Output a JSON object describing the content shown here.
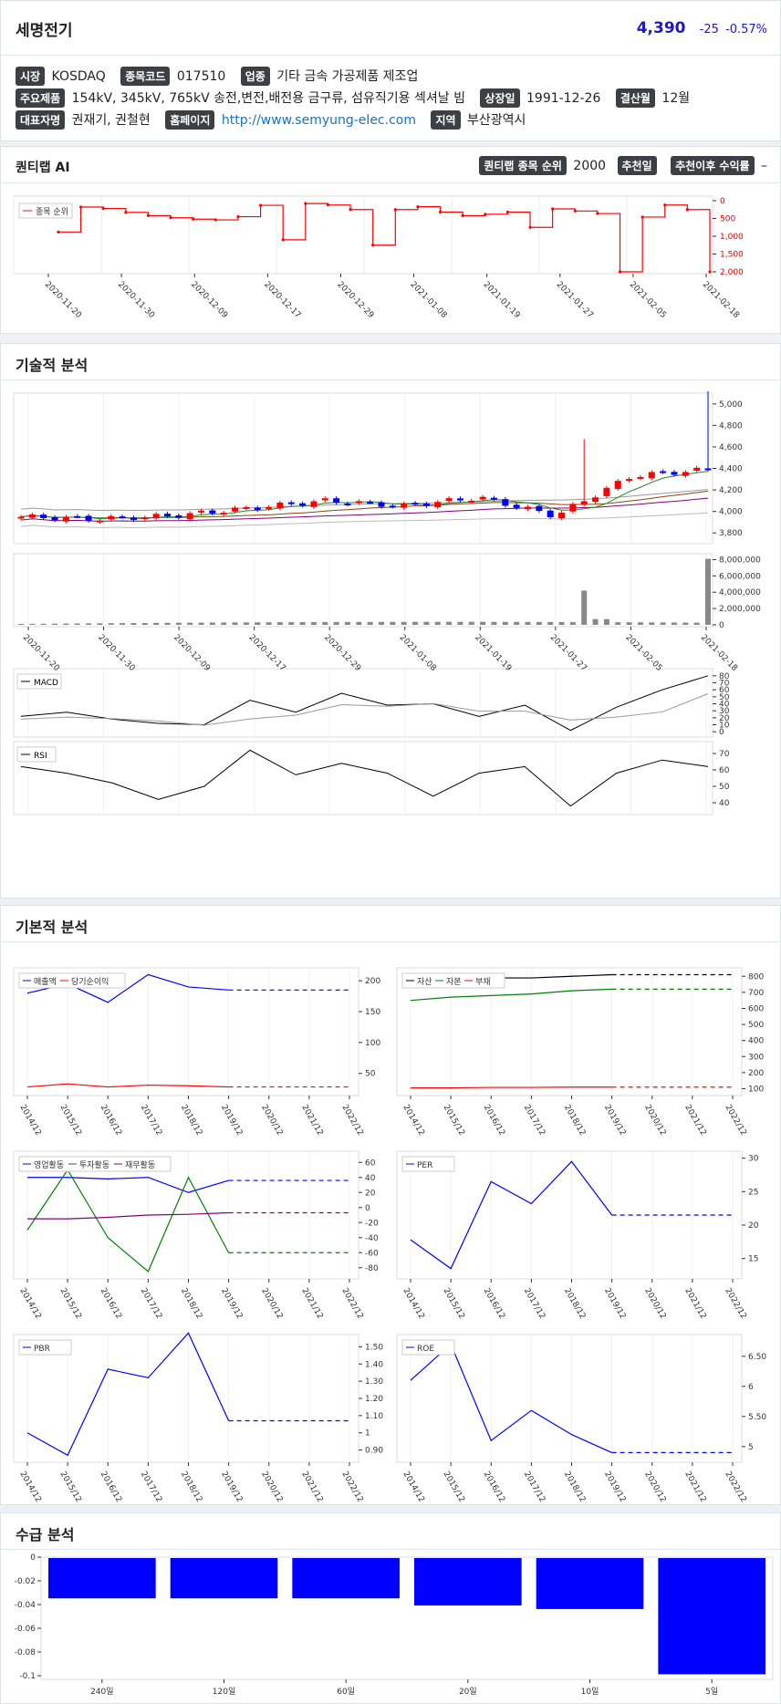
{
  "stock": {
    "name": "세명전기",
    "price": "4,390",
    "change": "-25",
    "change_pct": "-0.57%"
  },
  "info": {
    "market_label": "시장",
    "market": "KOSDAQ",
    "code_label": "종목코드",
    "code": "017510",
    "industry_label": "업종",
    "industry": "기타 금속 가공제품 제조업",
    "products_label": "주요제품",
    "products": "154kV, 345kV, 765kV 송전,변전,배전용 금구류, 섬유직기용 섹셔날 빔",
    "listed_label": "상장일",
    "listed": "1991-12-26",
    "fiscal_label": "결산월",
    "fiscal": "12월",
    "ceo_label": "대표자명",
    "ceo": "권재기, 권철현",
    "homepage_label": "홈페이지",
    "homepage": "http://www.semyung-elec.com",
    "region_label": "지역",
    "region": "부산광역시"
  },
  "ai": {
    "title": "퀀티랩 AI",
    "rank_label": "퀀티랩 종목 순위",
    "rank": "2000",
    "rec_label": "추천일",
    "return_label": "추천이후 수익률",
    "return": "–",
    "legend": "종목 순위",
    "y_ticks": [
      "0",
      "500",
      "1,000",
      "1,500",
      "2,000"
    ],
    "x_ticks": [
      "2020-11-20",
      "2020-11-30",
      "2020-12-09",
      "2020-12-17",
      "2020-12-29",
      "2021-01-08",
      "2021-01-19",
      "2021-01-27",
      "2021-02-05",
      "2021-02-18"
    ],
    "color": "#ff0000"
  },
  "tech": {
    "title": "기술적 분석",
    "price_ticks": [
      "3,800",
      "4,000",
      "4,200",
      "4,400",
      "4,600",
      "4,800",
      "5,000"
    ],
    "volume_ticks": [
      "0",
      "2,000,000",
      "4,000,000",
      "6,000,000",
      "8,000,000"
    ],
    "x_ticks": [
      "2020-11-20",
      "2020-11-30",
      "2020-12-09",
      "2020-12-17",
      "2020-12-29",
      "2021-01-08",
      "2021-01-19",
      "2021-01-27",
      "2021-02-05",
      "2021-02-18"
    ],
    "macd_legend": "MACD",
    "macd_ticks": [
      "0",
      "10",
      "20",
      "30",
      "40",
      "50",
      "60",
      "70",
      "80"
    ],
    "rsi_legend": "RSI",
    "rsi_ticks": [
      "40",
      "50",
      "60",
      "70"
    ],
    "up_color": "#ff0000",
    "down_color": "#0000ff"
  },
  "fund": {
    "title": "기본적 분석",
    "years": [
      "2014/12",
      "2015/12",
      "2016/12",
      "2017/12",
      "2018/12",
      "2019/12",
      "2020/12",
      "2021/12",
      "2022/12"
    ],
    "c1_legend": [
      "매출액",
      "당기순이익"
    ],
    "c1_ticks": [
      "50",
      "100",
      "150",
      "200"
    ],
    "c2_legend": [
      "자산",
      "자본",
      "부채"
    ],
    "c2_ticks": [
      "100",
      "200",
      "300",
      "400",
      "500",
      "600",
      "700",
      "800"
    ],
    "c3_legend": [
      "영업활동",
      "투자활동",
      "재무활동"
    ],
    "c3_ticks": [
      "-80",
      "-60",
      "-40",
      "-20",
      "0",
      "20",
      "40",
      "60"
    ],
    "c4_legend": [
      "PER"
    ],
    "c4_ticks": [
      "15",
      "20",
      "25",
      "30"
    ],
    "c5_legend": [
      "PBR"
    ],
    "c5_ticks": [
      "0.90",
      "1",
      "1.10",
      "1.20",
      "1.30",
      "1.40",
      "1.50"
    ],
    "c6_legend": [
      "ROE"
    ],
    "c6_ticks": [
      "5",
      "5.50",
      "6",
      "6.50"
    ]
  },
  "supply": {
    "title": "수급 분석",
    "y_ticks": [
      "0",
      "-0.02",
      "-0.04",
      "-0.06",
      "-0.08",
      "-0.1"
    ],
    "color": "#0000ff"
  },
  "chart_data": [
    {
      "type": "line",
      "title": "",
      "series": [
        {
          "name": "종목 순위",
          "values": [
            880,
            180,
            220,
            330,
            420,
            480,
            520,
            540,
            450,
            130,
            1100,
            80,
            120,
            250,
            1250,
            250,
            170,
            320,
            420,
            380,
            320,
            750,
            230,
            290,
            360,
            2000,
            460,
            120,
            250,
            2000
          ]
        }
      ],
      "ylim": [
        2000,
        0
      ],
      "yscale": "inverted"
    },
    {
      "type": "candlestick",
      "title": "",
      "x": [
        "2020-11-20",
        "2020-11-30",
        "2020-12-09",
        "2020-12-17",
        "2020-12-29",
        "2021-01-08",
        "2021-01-19",
        "2021-01-27",
        "2021-02-05",
        "2021-02-18"
      ],
      "ylim": [
        3700,
        5100
      ],
      "close_approx": [
        3950,
        3930,
        3960,
        4030,
        4100,
        4050,
        4130,
        3960,
        4330,
        4390
      ]
    },
    {
      "type": "bar",
      "title": "",
      "series": [
        {
          "name": "거래량",
          "values_approx": [
            200000,
            150000,
            100000,
            300000,
            400000,
            200000,
            300000,
            4200000,
            800000,
            8100000
          ]
        }
      ],
      "ylim": [
        0,
        8500000
      ]
    },
    {
      "type": "line",
      "title": "",
      "series": [
        {
          "name": "MACD",
          "values": [
            22,
            28,
            18,
            12,
            10,
            45,
            28,
            55,
            38,
            40,
            22,
            38,
            2,
            35,
            60,
            80
          ]
        }
      ],
      "ylim": [
        -5,
        85
      ]
    },
    {
      "type": "line",
      "title": "",
      "series": [
        {
          "name": "RSI",
          "values": [
            62,
            58,
            52,
            42,
            50,
            72,
            57,
            64,
            58,
            44,
            58,
            62,
            38,
            58,
            66,
            62
          ]
        }
      ],
      "ylim": [
        35,
        75
      ]
    },
    {
      "type": "line",
      "title": "",
      "categories": [
        "2014/12",
        "2015/12",
        "2016/12",
        "2017/12",
        "2018/12",
        "2019/12",
        "2020/12",
        "2021/12",
        "2022/12"
      ],
      "series": [
        {
          "name": "매출액",
          "values": [
            180,
            195,
            165,
            210,
            190,
            185,
            185,
            185,
            185
          ]
        },
        {
          "name": "당기순이익",
          "values": [
            28,
            33,
            28,
            31,
            30,
            28,
            28,
            28,
            28
          ]
        }
      ]
    },
    {
      "type": "line",
      "title": "",
      "categories": [
        "2014/12",
        "2015/12",
        "2016/12",
        "2017/12",
        "2018/12",
        "2019/12",
        "2020/12",
        "2021/12",
        "2022/12"
      ],
      "series": [
        {
          "name": "자산",
          "values": [
            790,
            790,
            790,
            790,
            800,
            810,
            810,
            810,
            810
          ]
        },
        {
          "name": "자본",
          "values": [
            650,
            670,
            680,
            690,
            710,
            720,
            720,
            720,
            720
          ]
        },
        {
          "name": "부채",
          "values": [
            105,
            105,
            108,
            108,
            110,
            110,
            110,
            110,
            110
          ]
        }
      ]
    },
    {
      "type": "line",
      "title": "",
      "categories": [
        "2014/12",
        "2015/12",
        "2016/12",
        "2017/12",
        "2018/12",
        "2019/12",
        "2020/12",
        "2021/12",
        "2022/12"
      ],
      "series": [
        {
          "name": "영업활동",
          "values": [
            40,
            40,
            38,
            40,
            20,
            36,
            36,
            36,
            36
          ]
        },
        {
          "name": "투자활동",
          "values": [
            -30,
            50,
            -40,
            -85,
            40,
            -60,
            -60,
            -60,
            -60
          ]
        },
        {
          "name": "재무활동",
          "values": [
            -15,
            -15,
            -13,
            -10,
            -9,
            -7,
            -7,
            -7,
            -7
          ]
        }
      ]
    },
    {
      "type": "line",
      "title": "",
      "categories": [
        "2014/12",
        "2015/12",
        "2016/12",
        "2017/12",
        "2018/12",
        "2019/12",
        "2020/12",
        "2021/12",
        "2022/12"
      ],
      "series": [
        {
          "name": "PER",
          "values": [
            17.8,
            13.5,
            26.5,
            23.2,
            29.5,
            21.5,
            21.5,
            21.5,
            21.5
          ]
        }
      ]
    },
    {
      "type": "line",
      "title": "",
      "categories": [
        "2014/12",
        "2015/12",
        "2016/12",
        "2017/12",
        "2018/12",
        "2019/12",
        "2020/12",
        "2021/12",
        "2022/12"
      ],
      "series": [
        {
          "name": "PBR",
          "values": [
            1.0,
            0.87,
            1.37,
            1.32,
            1.58,
            1.07,
            1.07,
            1.07,
            1.07
          ]
        }
      ]
    },
    {
      "type": "line",
      "title": "",
      "categories": [
        "2014/12",
        "2015/12",
        "2016/12",
        "2017/12",
        "2018/12",
        "2019/12",
        "2020/12",
        "2021/12",
        "2022/12"
      ],
      "series": [
        {
          "name": "ROE",
          "values": [
            6.1,
            6.7,
            5.1,
            5.6,
            5.2,
            4.9,
            4.9,
            4.9,
            4.9
          ]
        }
      ]
    },
    {
      "type": "bar",
      "title": "",
      "categories": [
        "240일",
        "120일",
        "60일",
        "20일",
        "10일",
        "5일"
      ],
      "values": [
        -0.034,
        -0.034,
        -0.034,
        -0.04,
        -0.043,
        -0.098
      ],
      "ylim": [
        -0.1,
        0
      ]
    }
  ]
}
